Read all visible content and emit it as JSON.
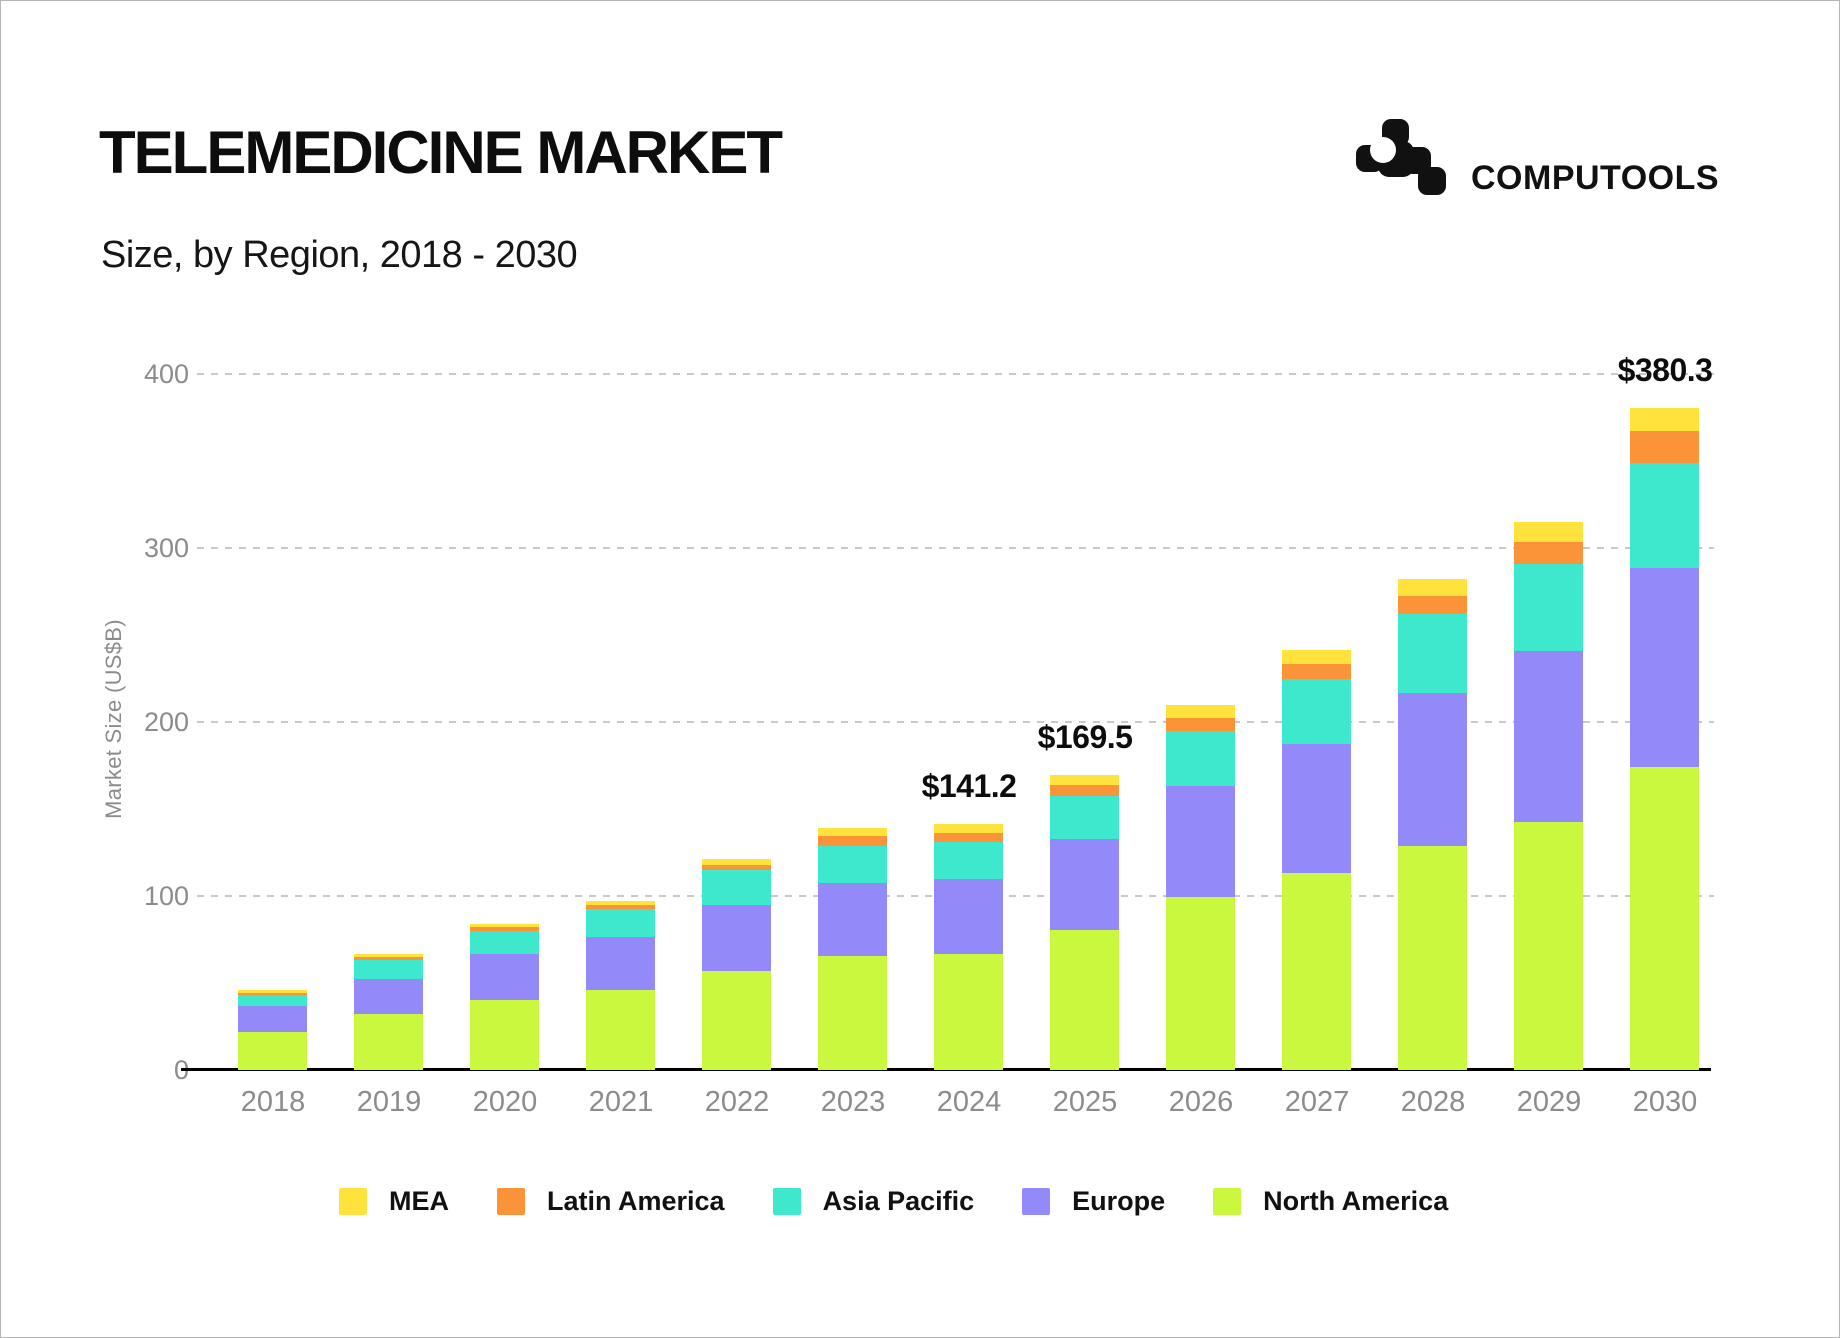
{
  "header": {
    "title": "TELEMEDICINE MARKET",
    "subtitle": "Size, by Region, 2018 - 2030"
  },
  "logo": {
    "brand": "COMPUTOOLS",
    "icon": "computools-pixel-blob-icon",
    "color": "#111111"
  },
  "chart_data": {
    "type": "bar",
    "variant": "stacked-vertical",
    "x": [
      "2018",
      "2019",
      "2020",
      "2021",
      "2022",
      "2023",
      "2024",
      "2025",
      "2026",
      "2027",
      "2028",
      "2029",
      "2030"
    ],
    "series": [
      {
        "name": "North America",
        "color": "#C9F83E",
        "values": [
          21.8,
          32.0,
          40.1,
          45.9,
          56.7,
          65.3,
          66.6,
          80.2,
          99.4,
          113.2,
          128.7,
          142.4,
          174.2
        ]
      },
      {
        "name": "Europe",
        "color": "#9489F8",
        "values": [
          14.9,
          20.5,
          26.5,
          30.3,
          38.2,
          42.2,
          43.3,
          52.8,
          63.9,
          73.9,
          88.2,
          98.3,
          114.2
        ]
      },
      {
        "name": "Asia Pacific",
        "color": "#3EE8CD",
        "values": [
          6.2,
          10.5,
          13.0,
          16.1,
          19.8,
          21.2,
          21.2,
          24.6,
          31.5,
          37.4,
          45.3,
          50.0,
          60.2
        ]
      },
      {
        "name": "Latin America",
        "color": "#FB9338",
        "values": [
          1.3,
          1.8,
          2.3,
          2.3,
          3.2,
          5.7,
          5.1,
          6.2,
          7.7,
          8.7,
          10.0,
          13.0,
          18.7
        ]
      },
      {
        "name": "MEA",
        "color": "#FFE23C",
        "values": [
          1.6,
          1.7,
          2.0,
          2.7,
          3.5,
          4.5,
          5.0,
          5.7,
          7.3,
          8.3,
          10.0,
          11.1,
          13.0
        ]
      }
    ],
    "totals": [
      45.8,
      66.5,
      83.9,
      97.3,
      121.4,
      138.9,
      141.2,
      169.5,
      209.8,
      241.5,
      282.2,
      314.8,
      380.3
    ],
    "legend_order": [
      "MEA",
      "Latin America",
      "Asia Pacific",
      "Europe",
      "North America"
    ],
    "annotations": [
      {
        "x": "2024",
        "text": "$141.2"
      },
      {
        "x": "2025",
        "text": "$169.5"
      },
      {
        "x": "2030",
        "text": "$380.3"
      }
    ],
    "ylabel": "Market Size (US$B)",
    "yticks": [
      0,
      100,
      200,
      300,
      400
    ],
    "ylim": [
      0,
      400
    ],
    "grid": "horizontal-dashed",
    "legend_position": "bottom",
    "colors": {
      "axis_text": "#8c8c8c",
      "gridline": "#c9c9c9",
      "baseline": "#000000",
      "label_text": "#0d0d0d"
    }
  }
}
